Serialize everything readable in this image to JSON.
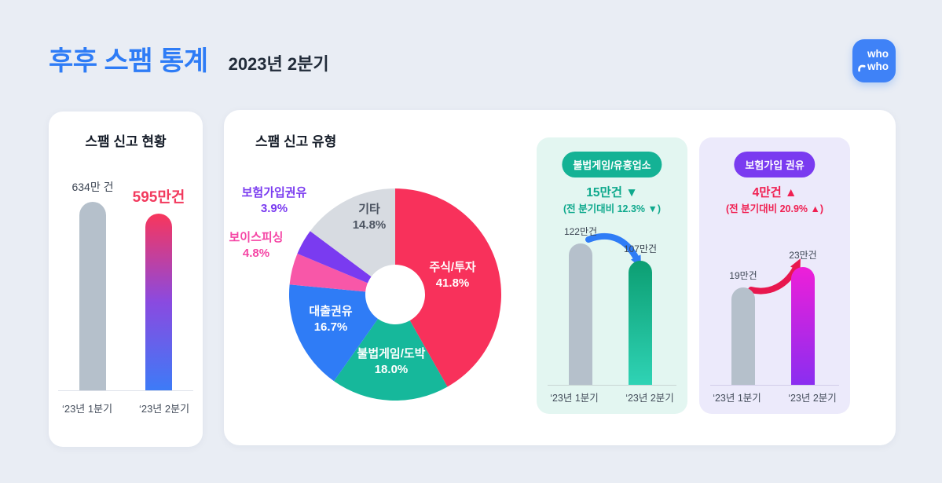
{
  "header": {
    "title": "후후 스팸 통계",
    "subtitle": "2023년 2분기"
  },
  "logo": {
    "text_top": "who",
    "text_bottom": "who"
  },
  "colors": {
    "background": "#e9edf4",
    "title_blue": "#2e7cf6",
    "bar_gray": "#b5c0cb",
    "status_highlight": "#f23a5e",
    "teal": "#14b295",
    "purple": "#7a3bf0",
    "red_pink": "#f02052"
  },
  "chart_data": [
    {
      "type": "bar",
      "title": "스팸 신고 현황",
      "categories": [
        "‘23년 1분기",
        "‘23년 2분기"
      ],
      "values": [
        634,
        595
      ],
      "value_labels": [
        "634만 건",
        "595만건"
      ],
      "unit": "만 건",
      "colors": [
        "#b5c0cb",
        [
          "#f8365c",
          "#8a4ae0",
          "#3d7bf7"
        ]
      ]
    },
    {
      "type": "pie",
      "title": "스팸 신고 유형",
      "labels": [
        "주식/투자",
        "불법게임/도박",
        "대출권유",
        "보이스피싱",
        "보험가입권유",
        "기타"
      ],
      "values": [
        41.8,
        18.0,
        16.7,
        4.8,
        3.9,
        14.8
      ],
      "value_labels": [
        "41.8%",
        "18.0%",
        "16.7%",
        "4.8%",
        "3.9%",
        "14.8%"
      ],
      "colors": [
        "#f8315b",
        "#16b89b",
        "#2f7cf6",
        "#f857a8",
        "#7a3bf0",
        "#d7dbe1"
      ],
      "donut": true
    },
    {
      "type": "bar",
      "title": "불법게임/유흥업소",
      "delta": "15만건 ▼",
      "delta_detail": "(전 분기대비 12.3% ▼)",
      "categories": [
        "‘23년 1분기",
        "‘23년 2분기"
      ],
      "values": [
        122,
        107
      ],
      "value_labels": [
        "122만건",
        "107만건"
      ],
      "unit": "만건",
      "colors": [
        "#b5c0cb",
        [
          "#0c9e72",
          "#2fd3b5"
        ]
      ]
    },
    {
      "type": "bar",
      "title": "보험가입 권유",
      "delta": "4만건 ▲",
      "delta_detail": "(전 분기대비 20.9% ▲)",
      "categories": [
        "‘23년 1분기",
        "‘23년 2분기"
      ],
      "values": [
        19,
        23
      ],
      "value_labels": [
        "19만건",
        "23만건"
      ],
      "unit": "만건",
      "colors": [
        "#b5c0cb",
        [
          "#ee1fd8",
          "#8a2ef0"
        ]
      ]
    }
  ]
}
